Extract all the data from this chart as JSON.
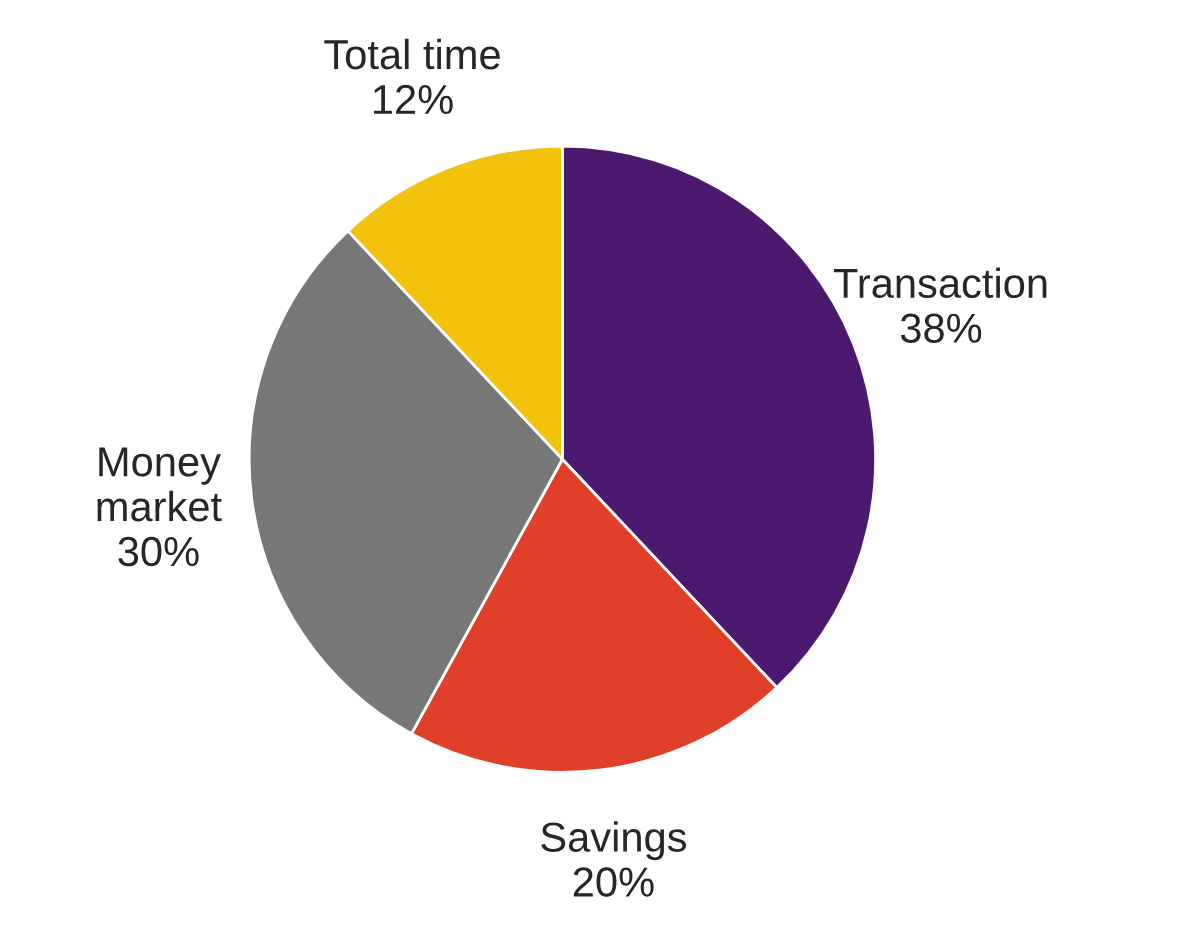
{
  "chart_data": {
    "type": "pie",
    "categories": [
      "Transaction",
      "Savings",
      "Money\nmarket",
      "Total time"
    ],
    "values": [
      38,
      20,
      30,
      12
    ],
    "value_labels": [
      "38%",
      "20%",
      "30%",
      "12%"
    ],
    "colors": [
      "#4b1a6e",
      "#e0402a",
      "#777777",
      "#f2c20c"
    ]
  }
}
